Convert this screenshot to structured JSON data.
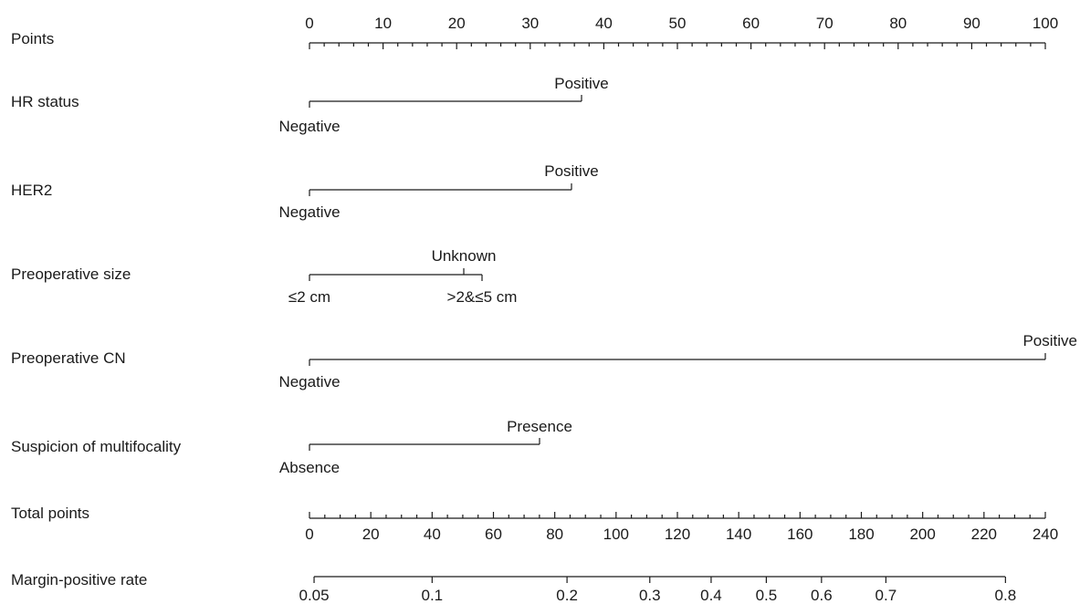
{
  "chart_data": {
    "type": "nomogram",
    "points_axis": {
      "label": "Points",
      "range": [
        0,
        100
      ],
      "ticks": [
        0,
        10,
        20,
        30,
        40,
        50,
        60,
        70,
        80,
        90,
        100
      ],
      "minor_step": 2
    },
    "variables": [
      {
        "name": "HR status",
        "levels": [
          {
            "label": "Negative",
            "points": 0
          },
          {
            "label": "Positive",
            "points": 37
          }
        ]
      },
      {
        "name": "HER2",
        "levels": [
          {
            "label": "Negative",
            "points": 0
          },
          {
            "label": "Positive",
            "points": 35.6
          }
        ]
      },
      {
        "name": "Preoperative size",
        "levels": [
          {
            "label": "≤2 cm",
            "points": 0
          },
          {
            "label": "Unknown",
            "points": 21
          },
          {
            "label": ">2&≤5 cm",
            "points": 23.5
          }
        ]
      },
      {
        "name": "Preoperative CN",
        "levels": [
          {
            "label": "Negative",
            "points": 0
          },
          {
            "label": "Positive",
            "points": 100
          }
        ]
      },
      {
        "name": "Suspicion of multifocality",
        "levels": [
          {
            "label": "Absence",
            "points": 0
          },
          {
            "label": "Presence",
            "points": 31.3
          }
        ]
      }
    ],
    "total_points_axis": {
      "label": "Total points",
      "range": [
        0,
        240
      ],
      "ticks": [
        0,
        20,
        40,
        60,
        80,
        100,
        120,
        140,
        160,
        180,
        200,
        220,
        240
      ],
      "minor_step": 5
    },
    "probability_axis": {
      "label": "Margin-positive rate",
      "ticks": [
        {
          "label": "0.05",
          "value": 0.05,
          "total_points": 1.5
        },
        {
          "label": "0.1",
          "value": 0.1,
          "total_points": 40
        },
        {
          "label": "0.2",
          "value": 0.2,
          "total_points": 84
        },
        {
          "label": "0.3",
          "value": 0.3,
          "total_points": 111
        },
        {
          "label": "0.4",
          "value": 0.4,
          "total_points": 131
        },
        {
          "label": "0.5",
          "value": 0.5,
          "total_points": 149
        },
        {
          "label": "0.6",
          "value": 0.6,
          "total_points": 167
        },
        {
          "label": "0.7",
          "value": 0.7,
          "total_points": 188
        },
        {
          "label": "0.8",
          "value": 0.8,
          "total_points": 227
        }
      ]
    }
  }
}
